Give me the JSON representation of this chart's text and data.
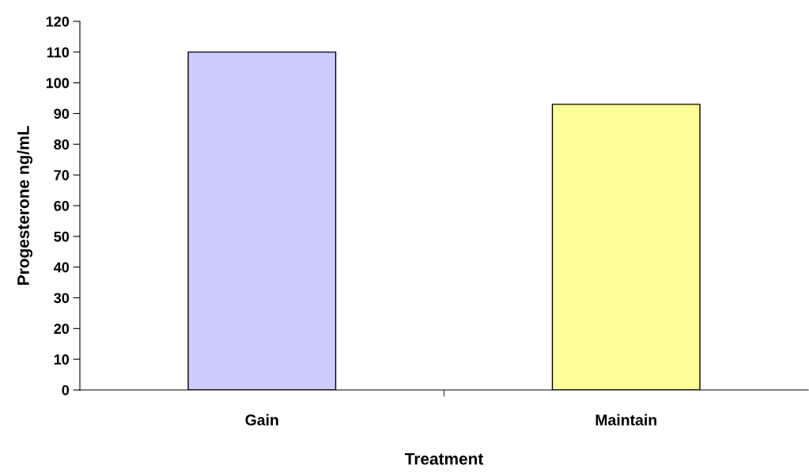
{
  "chart_data": {
    "type": "bar",
    "xlabel": "Treatment",
    "ylabel": "Progesterone ng/mL",
    "categories": [
      "Gain",
      "Maintain"
    ],
    "values": [
      110,
      93
    ],
    "colors": [
      "#ccccff",
      "#ffff99"
    ],
    "ylim": [
      0,
      120
    ],
    "yticks": [
      0,
      10,
      20,
      30,
      40,
      50,
      60,
      70,
      80,
      90,
      100,
      110,
      120
    ],
    "grid": false,
    "legend": false
  }
}
